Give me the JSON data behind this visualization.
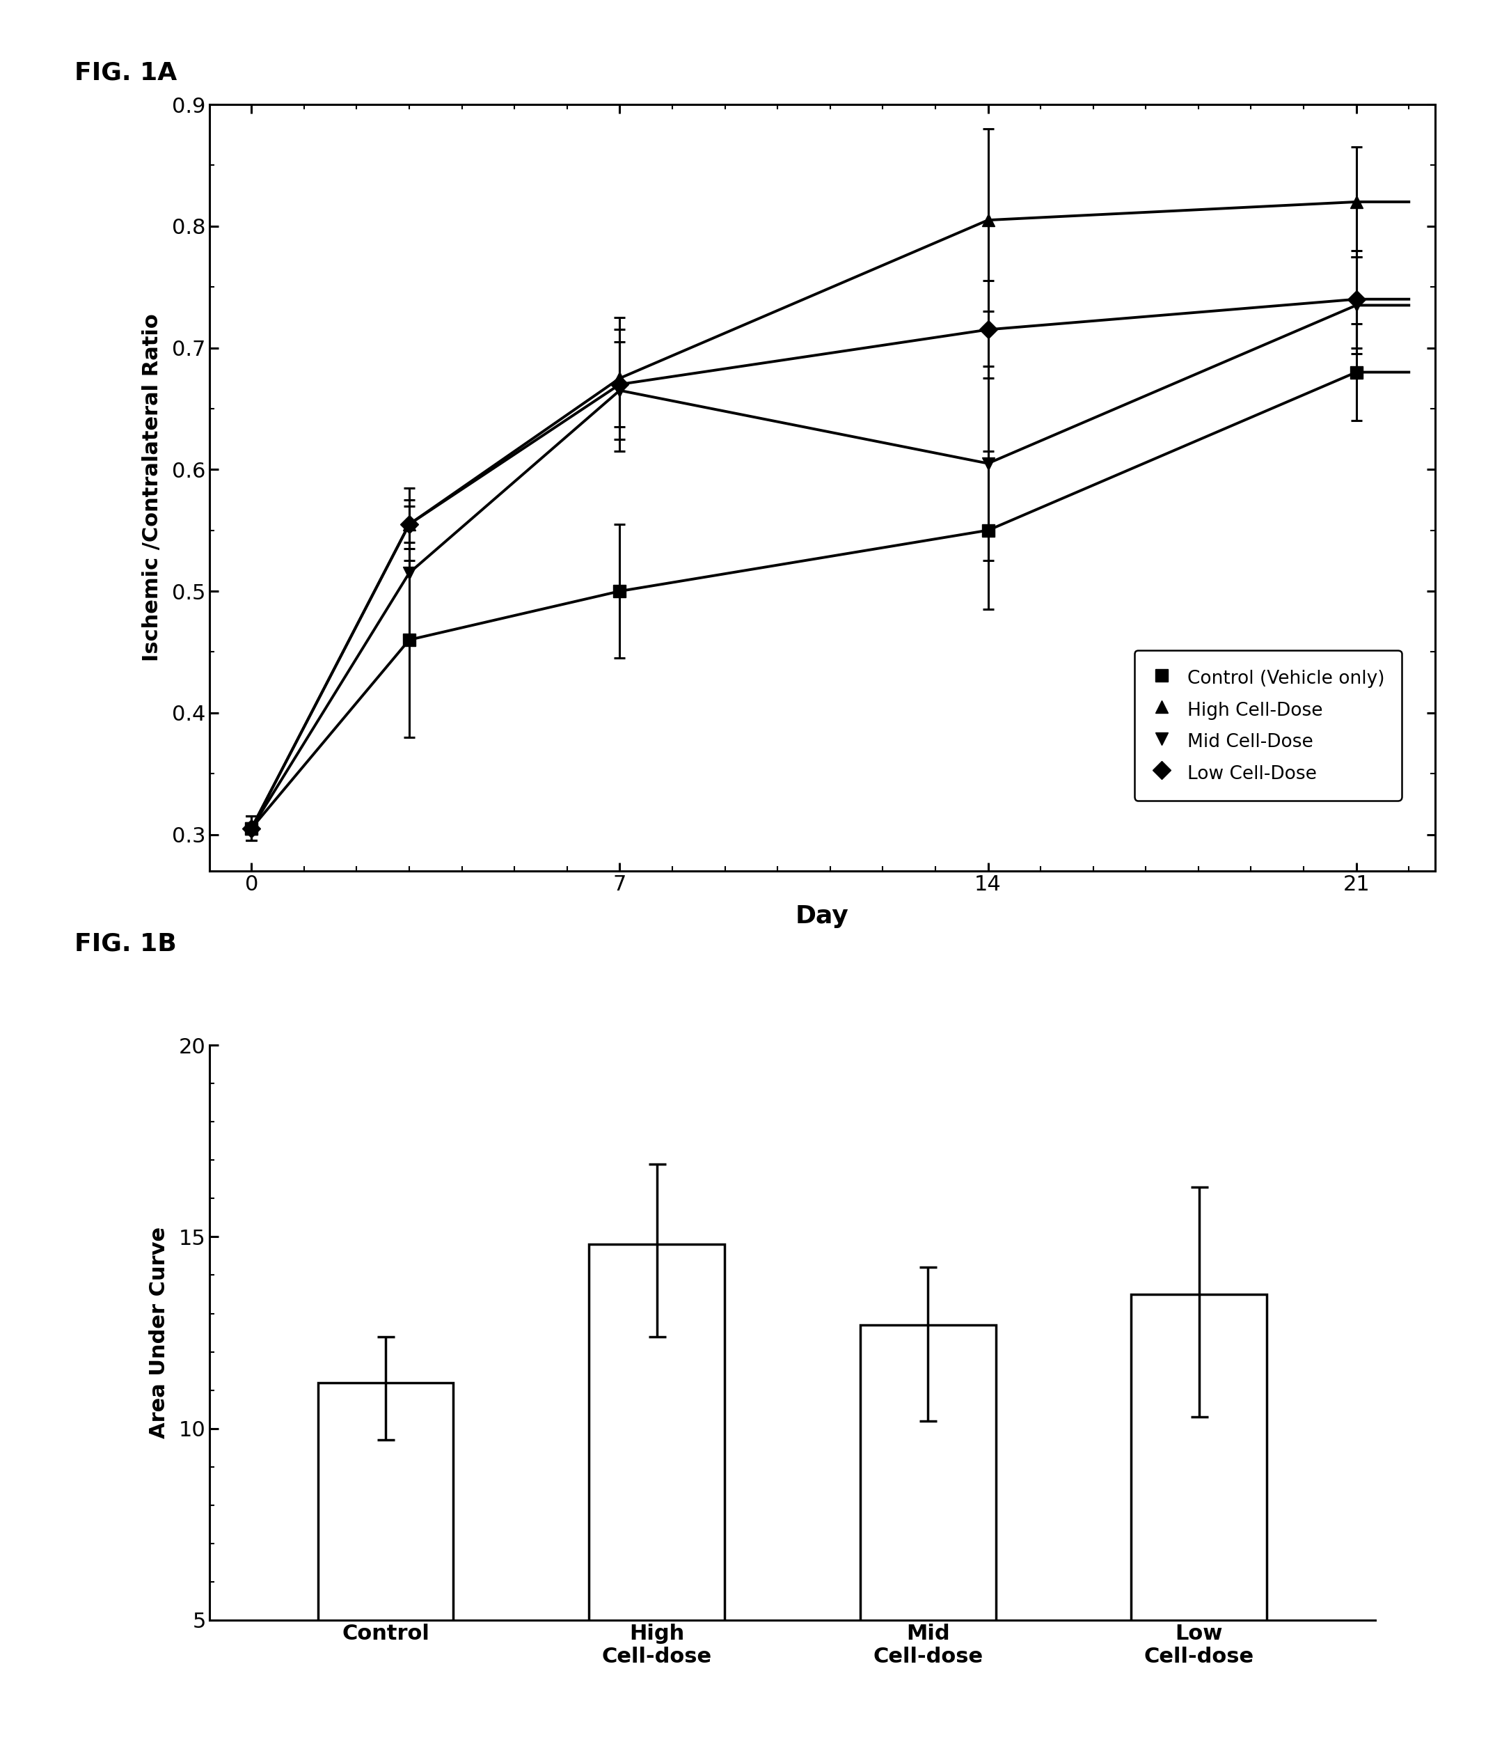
{
  "fig1a_title": "FIG. 1A",
  "fig1b_title": "FIG. 1B",
  "line_days": [
    0,
    3,
    7,
    14,
    21
  ],
  "control_values": [
    0.305,
    0.46,
    0.5,
    0.55,
    0.68
  ],
  "control_err": [
    0.01,
    0.08,
    0.055,
    0.065,
    0.04
  ],
  "high_values": [
    0.305,
    0.555,
    0.675,
    0.805,
    0.82
  ],
  "high_err": [
    0.01,
    0.03,
    0.05,
    0.075,
    0.045
  ],
  "mid_values": [
    0.305,
    0.515,
    0.665,
    0.605,
    0.735
  ],
  "mid_err": [
    0.01,
    0.055,
    0.05,
    0.08,
    0.04
  ],
  "low_values": [
    0.305,
    0.555,
    0.67,
    0.715,
    0.74
  ],
  "low_err": [
    0.01,
    0.02,
    0.035,
    0.04,
    0.04
  ],
  "xlabel1a": "Day",
  "ylabel1a": "Ischemic /Contralateral Ratio",
  "ylim1a_min": 0.27,
  "ylim1a_max": 0.9,
  "yticks1a": [
    0.3,
    0.4,
    0.5,
    0.6,
    0.7,
    0.8,
    0.9
  ],
  "xticks1a": [
    0,
    7,
    14,
    21
  ],
  "bar_categories": [
    "Control",
    "High\nCell-dose",
    "Mid\nCell-dose",
    "Low\nCell-dose"
  ],
  "bar_values": [
    11.2,
    14.8,
    12.7,
    13.5
  ],
  "bar_errors_up": [
    1.2,
    2.1,
    1.5,
    2.8
  ],
  "bar_errors_dn": [
    1.5,
    2.4,
    2.5,
    3.2
  ],
  "ylabel1b": "Area Under Curve",
  "ylim1b_min": 5,
  "ylim1b_max": 20,
  "yticks1b": [
    5,
    10,
    15,
    20
  ],
  "line_color": "#000000",
  "marker_color": "#000000",
  "bar_color": "#ffffff",
  "bar_edge_color": "#000000",
  "legend_labels": [
    "Control (Vehicle only)",
    "High Cell-Dose",
    "Mid Cell-Dose",
    "Low Cell-Dose"
  ],
  "legend_markers": [
    "s",
    "^",
    "v",
    "D"
  ]
}
